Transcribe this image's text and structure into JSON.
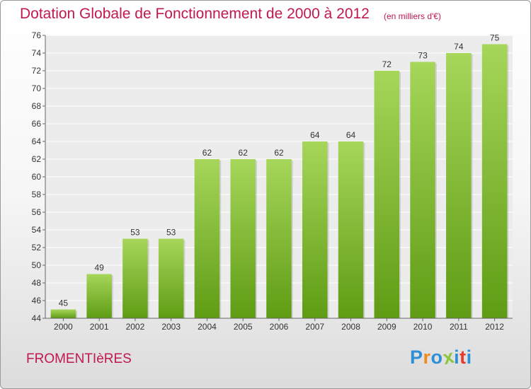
{
  "header": {
    "title": "Dotation Globale de Fonctionnement de 2000 à 2012",
    "subtitle": "(en milliers d'€)"
  },
  "footer": {
    "place": "FROMENTIèRES",
    "logo_text": "Proxiti",
    "logo_colors": [
      "#2d8fd6",
      "#f08a1c",
      "#2d8fd6",
      "#8cc63f",
      "#2d8fd6",
      "#e63a2e",
      "#2d8fd6"
    ]
  },
  "chart_data": {
    "type": "bar",
    "categories": [
      "2000",
      "2001",
      "2002",
      "2003",
      "2004",
      "2005",
      "2006",
      "2007",
      "2008",
      "2009",
      "2010",
      "2011",
      "2012"
    ],
    "values": [
      45,
      49,
      53,
      53,
      62,
      62,
      62,
      64,
      64,
      72,
      73,
      74,
      75
    ],
    "title": "Dotation Globale de Fonctionnement de 2000 à 2012",
    "xlabel": "",
    "ylabel": "",
    "ylim": [
      44,
      76
    ],
    "yticks": [
      44,
      46,
      48,
      50,
      52,
      54,
      56,
      58,
      60,
      62,
      64,
      66,
      68,
      70,
      72,
      74,
      76
    ],
    "grid": true,
    "bar_color_top": "#a6d65a",
    "bar_color_bottom": "#5f9c14"
  }
}
